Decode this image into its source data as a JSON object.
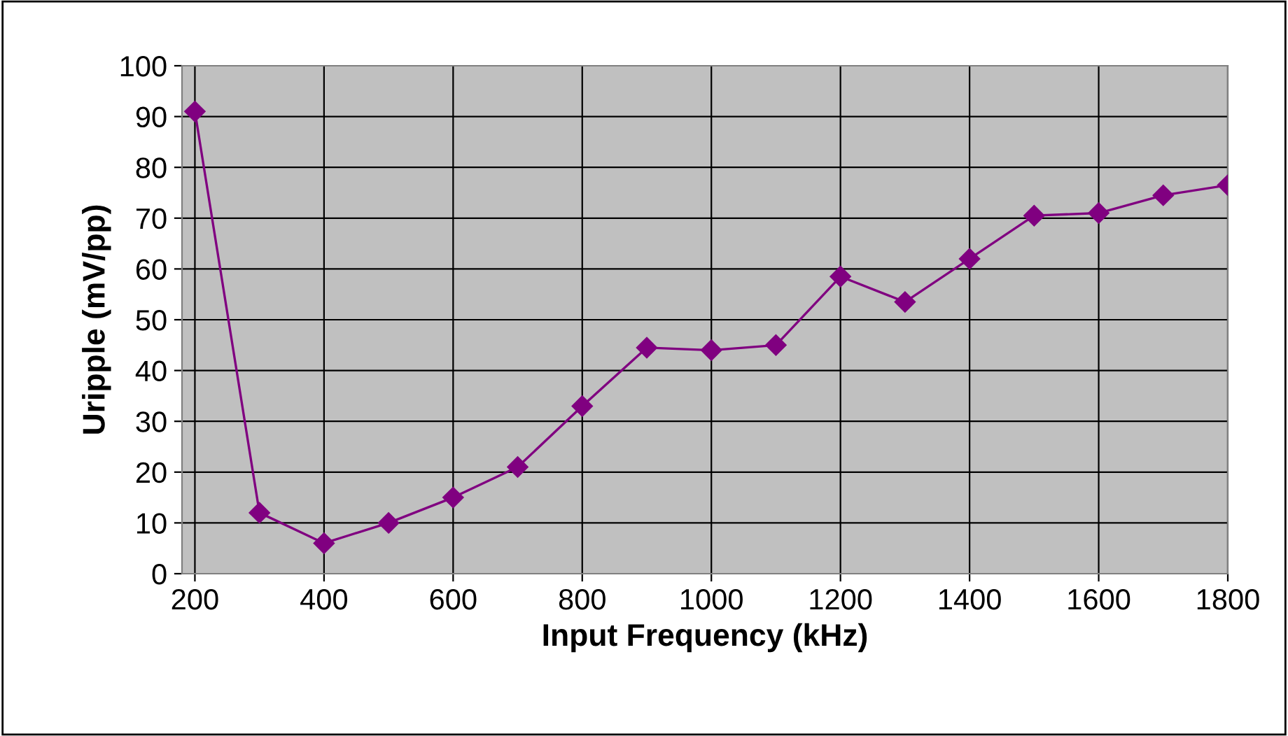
{
  "chart_data": {
    "type": "line",
    "xlabel": "Input Frequency (kHz)",
    "ylabel": "Uripple (mV/pp)",
    "x": [
      200,
      300,
      400,
      500,
      600,
      700,
      800,
      900,
      1000,
      1100,
      1200,
      1300,
      1400,
      1500,
      1600,
      1700,
      1800
    ],
    "series": [
      {
        "color": "#800080",
        "values": [
          91,
          12,
          6,
          10,
          15,
          21,
          33,
          44.5,
          44,
          45,
          58.5,
          53.5,
          62,
          70.5,
          71,
          74.5,
          76.5
        ]
      }
    ],
    "xlim": [
      180,
      1800
    ],
    "xticks": [
      200,
      400,
      600,
      800,
      1000,
      1200,
      1400,
      1600,
      1800
    ],
    "ylim": [
      0,
      100
    ],
    "yticks": [
      0,
      10,
      20,
      30,
      40,
      50,
      60,
      70,
      80,
      90,
      100
    ],
    "grid": true,
    "marker": "diamond",
    "line_style": "solid",
    "legend": false
  }
}
